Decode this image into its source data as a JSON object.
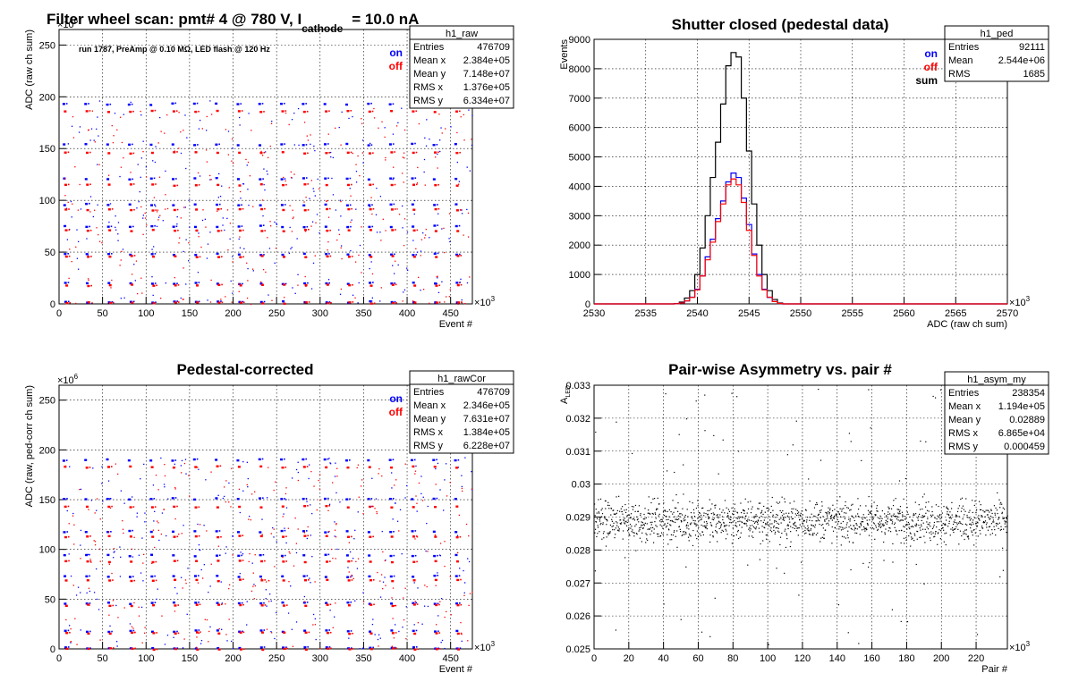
{
  "colors": {
    "on": "#0000ff",
    "off": "#ff0000",
    "sum": "#000000",
    "frame": "#000000",
    "grid": "#000000"
  },
  "chart_data": [
    {
      "type": "scatter",
      "title_main": "Filter wheel scan: pmt#   4 @   780 V, I",
      "title_sub": "cathode",
      "title_tail": "= 10.0 nA",
      "annotation": "run 1787, PreAmp @ 0.10 MΩ, LED flash @  120 Hz",
      "xlabel": "Event #",
      "ylabel": "ADC (raw ch sum)",
      "x_exp": "×10",
      "x_exp_power": "3",
      "y_exp": "×10",
      "y_exp_power": "6",
      "xlim": [
        0,
        475
      ],
      "ylim": [
        0,
        265
      ],
      "xticks": [
        "0",
        "50",
        "100",
        "150",
        "200",
        "250",
        "300",
        "350",
        "400",
        "450"
      ],
      "yticks": [
        "0",
        "50",
        "100",
        "150",
        "200",
        "250"
      ],
      "legend": [
        {
          "name": "on",
          "color": "#0000ff"
        },
        {
          "name": "off",
          "color": "#ff0000"
        }
      ],
      "stats": {
        "name": "h1_raw",
        "rows": [
          {
            "label": "Entries",
            "value": "476709"
          },
          {
            "label": "Mean x",
            "value": "2.384e+05"
          },
          {
            "label": "Mean y",
            "value": "7.148e+07"
          },
          {
            "label": "RMS x",
            "value": "1.376e+05"
          },
          {
            "label": "RMS y",
            "value": "6.334e+07"
          }
        ]
      },
      "series": [
        {
          "name": "on",
          "levels": [
            193,
            154,
            121,
            96,
            75,
            48,
            20,
            2
          ]
        },
        {
          "name": "off",
          "levels": [
            186,
            146,
            115,
            91,
            71,
            46,
            18,
            1
          ]
        }
      ]
    },
    {
      "type": "line",
      "title": "Shutter closed (pedestal data)",
      "xlabel": "ADC (raw ch sum)",
      "ylabel": "Events",
      "x_exp": "×10",
      "x_exp_power": "3",
      "xlim": [
        2530,
        2570
      ],
      "ylim": [
        0,
        9000
      ],
      "xticks": [
        "2530",
        "2535",
        "2540",
        "2545",
        "2550",
        "2555",
        "2560",
        "2565",
        "2570"
      ],
      "yticks": [
        "0",
        "1000",
        "2000",
        "3000",
        "4000",
        "5000",
        "6000",
        "7000",
        "8000",
        "9000"
      ],
      "legend": [
        {
          "name": "on",
          "color": "#0000ff"
        },
        {
          "name": "off",
          "color": "#ff0000"
        },
        {
          "name": "sum",
          "color": "#000000"
        }
      ],
      "stats": {
        "name": "h1_ped",
        "rows": [
          {
            "label": "Entries",
            "value": "92111"
          },
          {
            "label": "Mean",
            "value": "2.544e+06"
          },
          {
            "label": "RMS",
            "value": "1685"
          }
        ]
      },
      "bin_width": 0.5,
      "x": [
        2538.0,
        2538.5,
        2539.0,
        2539.5,
        2540.0,
        2540.5,
        2541.0,
        2541.5,
        2542.0,
        2542.5,
        2543.0,
        2543.5,
        2544.0,
        2544.5,
        2545.0,
        2545.5,
        2546.0,
        2546.5,
        2547.0,
        2547.5,
        2548.0
      ],
      "series": [
        {
          "name": "sum",
          "values": [
            10,
            60,
            200,
            450,
            1000,
            1900,
            3000,
            4300,
            5500,
            6800,
            8100,
            8550,
            8400,
            7000,
            5200,
            3400,
            2000,
            1000,
            450,
            150,
            30
          ]
        },
        {
          "name": "on",
          "values": [
            5,
            30,
            100,
            230,
            500,
            950,
            1600,
            2200,
            2900,
            3500,
            4150,
            4450,
            4300,
            3600,
            2700,
            1700,
            1000,
            500,
            220,
            80,
            15
          ]
        },
        {
          "name": "off",
          "values": [
            5,
            30,
            100,
            220,
            480,
            950,
            1500,
            2100,
            2800,
            3400,
            4050,
            4250,
            4050,
            3450,
            2500,
            1650,
            950,
            480,
            230,
            80,
            15
          ]
        }
      ]
    },
    {
      "type": "scatter",
      "title": "Pedestal-corrected",
      "xlabel": "Event #",
      "ylabel": "ADC (raw, ped-corr ch sum)",
      "x_exp": "×10",
      "x_exp_power": "3",
      "y_exp": "×10",
      "y_exp_power": "6",
      "xlim": [
        0,
        475
      ],
      "ylim": [
        0,
        265
      ],
      "xticks": [
        "0",
        "50",
        "100",
        "150",
        "200",
        "250",
        "300",
        "350",
        "400",
        "450"
      ],
      "yticks": [
        "0",
        "50",
        "100",
        "150",
        "200",
        "250"
      ],
      "legend": [
        {
          "name": "on",
          "color": "#0000ff"
        },
        {
          "name": "off",
          "color": "#ff0000"
        }
      ],
      "stats": {
        "name": "h1_rawCor",
        "rows": [
          {
            "label": "Entries",
            "value": "476709"
          },
          {
            "label": "Mean x",
            "value": "2.346e+05"
          },
          {
            "label": "Mean y",
            "value": "7.631e+07"
          },
          {
            "label": "RMS x",
            "value": "1.384e+05"
          },
          {
            "label": "RMS y",
            "value": "6.228e+07"
          }
        ]
      },
      "series": [
        {
          "name": "on",
          "levels": [
            190,
            151,
            118,
            94,
            73,
            46,
            18,
            1
          ]
        },
        {
          "name": "off",
          "levels": [
            183,
            143,
            113,
            88,
            69,
            44,
            16,
            0
          ]
        }
      ]
    },
    {
      "type": "scatter",
      "title": "Pair-wise Asymmetry vs. pair #",
      "xlabel": "Pair #",
      "ylabel": "A",
      "ylabel_sub": "LED",
      "x_exp": "×10",
      "x_exp_power": "3",
      "xlim": [
        0,
        238
      ],
      "ylim": [
        0.025,
        0.033
      ],
      "xticks": [
        "0",
        "20",
        "40",
        "60",
        "80",
        "100",
        "120",
        "140",
        "160",
        "180",
        "200",
        "220"
      ],
      "yticks": [
        "0.025",
        "0.026",
        "0.027",
        "0.028",
        "0.029",
        "0.03",
        "0.031",
        "0.032",
        "0.033"
      ],
      "stats": {
        "name": "h1_asym_my",
        "rows": [
          {
            "label": "Entries",
            "value": "238354"
          },
          {
            "label": "Mean x",
            "value": "1.194e+05"
          },
          {
            "label": "Mean y",
            "value": "0.02889"
          },
          {
            "label": "RMS x",
            "value": "6.865e+04"
          },
          {
            "label": "RMS y",
            "value": "0.000459"
          }
        ]
      },
      "series": [
        {
          "name": "",
          "center": 0.0289,
          "spread": 0.0006
        }
      ]
    }
  ]
}
